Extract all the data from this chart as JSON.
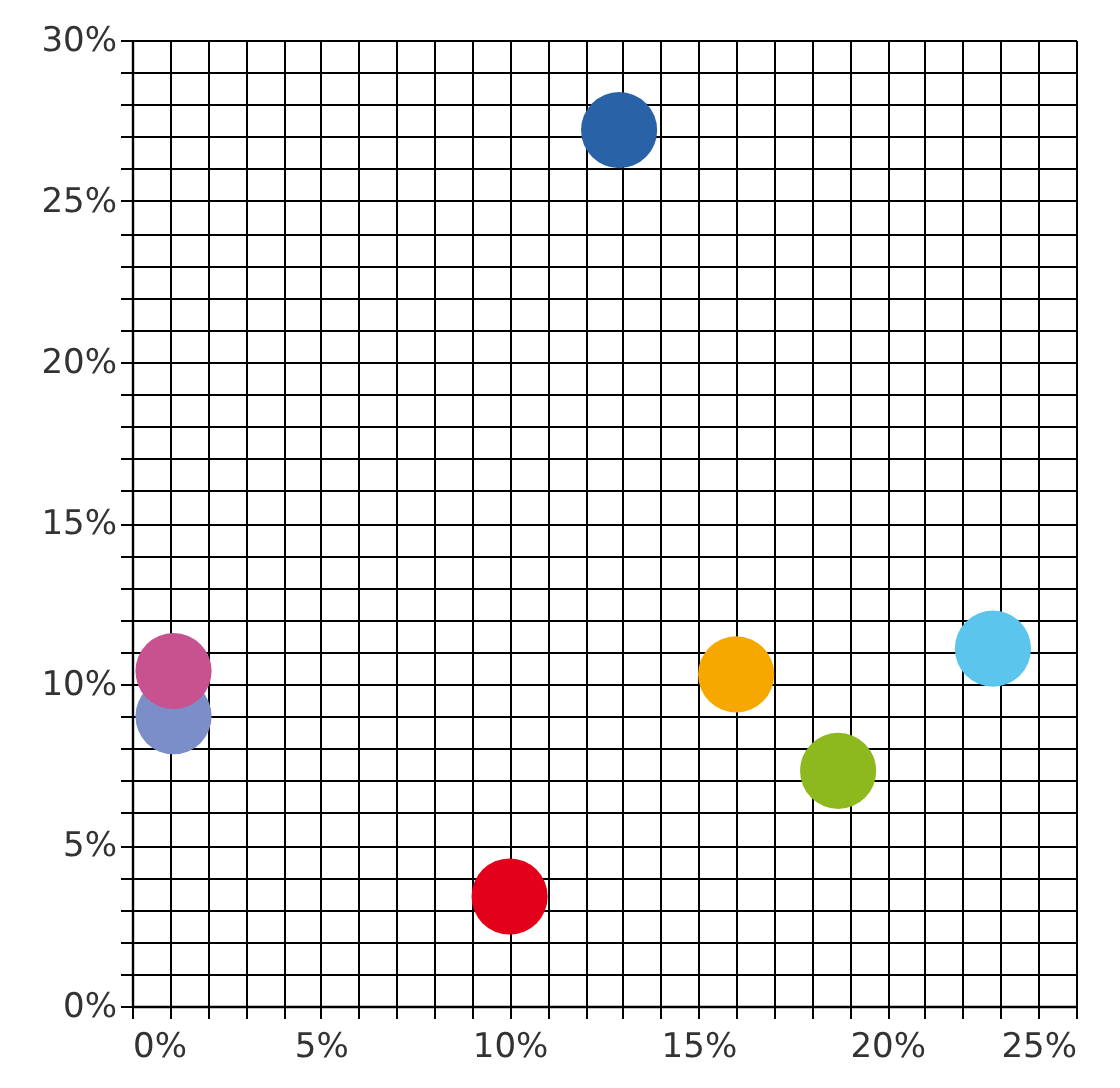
{
  "chart_data": {
    "type": "scatter",
    "marker": "circle",
    "legend": false,
    "grid": true,
    "xlim": [
      0,
      25
    ],
    "ylim": [
      0,
      30
    ],
    "xticks": [
      {
        "value": 0,
        "label": "0%"
      },
      {
        "value": 1,
        "label": null
      },
      {
        "value": 2,
        "label": null
      },
      {
        "value": 3,
        "label": null
      },
      {
        "value": 4,
        "label": null
      },
      {
        "value": 5,
        "label": "5%"
      },
      {
        "value": 6,
        "label": null
      },
      {
        "value": 7,
        "label": null
      },
      {
        "value": 8,
        "label": null
      },
      {
        "value": 9,
        "label": null
      },
      {
        "value": 10,
        "label": "10%"
      },
      {
        "value": 11,
        "label": null
      },
      {
        "value": 12,
        "label": null
      },
      {
        "value": 13,
        "label": null
      },
      {
        "value": 14,
        "label": null
      },
      {
        "value": 15,
        "label": "15%"
      },
      {
        "value": 16,
        "label": null
      },
      {
        "value": 17,
        "label": null
      },
      {
        "value": 18,
        "label": null
      },
      {
        "value": 19,
        "label": null
      },
      {
        "value": 20,
        "label": "20%"
      },
      {
        "value": 21,
        "label": null
      },
      {
        "value": 22,
        "label": null
      },
      {
        "value": 23,
        "label": null
      },
      {
        "value": 24,
        "label": null
      },
      {
        "value": 25,
        "label": "25%"
      }
    ],
    "yticks": [
      {
        "value": 0,
        "label": "0%"
      },
      {
        "value": 1,
        "label": null
      },
      {
        "value": 2,
        "label": null
      },
      {
        "value": 3,
        "label": null
      },
      {
        "value": 4,
        "label": null
      },
      {
        "value": 5,
        "label": "5%"
      },
      {
        "value": 6,
        "label": null
      },
      {
        "value": 7,
        "label": null
      },
      {
        "value": 8,
        "label": null
      },
      {
        "value": 9,
        "label": null
      },
      {
        "value": 10,
        "label": "10%"
      },
      {
        "value": 11,
        "label": null
      },
      {
        "value": 12,
        "label": null
      },
      {
        "value": 13,
        "label": null
      },
      {
        "value": 14,
        "label": null
      },
      {
        "value": 15,
        "label": "15%"
      },
      {
        "value": 16,
        "label": null
      },
      {
        "value": 17,
        "label": null
      },
      {
        "value": 18,
        "label": null
      },
      {
        "value": 19,
        "label": null
      },
      {
        "value": 20,
        "label": "20%"
      },
      {
        "value": 21,
        "label": null
      },
      {
        "value": 22,
        "label": null
      },
      {
        "value": 23,
        "label": null
      },
      {
        "value": 24,
        "label": null
      },
      {
        "value": 25,
        "label": "25%"
      },
      {
        "value": 26,
        "label": null
      },
      {
        "value": 27,
        "label": null
      },
      {
        "value": 28,
        "label": null
      },
      {
        "value": 29,
        "label": null
      },
      {
        "value": 30,
        "label": "30%"
      }
    ],
    "series": [
      {
        "color": "#2a62a8",
        "x": [
          12.9
        ],
        "values": [
          27.2
        ]
      },
      {
        "color": "#7b8ec8",
        "x": [
          1.1
        ],
        "values": [
          9.0
        ]
      },
      {
        "color": "#c8518f",
        "x": [
          1.1
        ],
        "values": [
          10.4
        ]
      },
      {
        "color": "#e3001b",
        "x": [
          10.0
        ],
        "values": [
          3.4
        ]
      },
      {
        "color": "#f6a800",
        "x": [
          16.0
        ],
        "values": [
          10.3
        ]
      },
      {
        "color": "#8db81e",
        "x": [
          18.7
        ],
        "values": [
          7.3
        ]
      },
      {
        "color": "#5bc5ee",
        "x": [
          22.8
        ],
        "values": [
          11.1
        ]
      }
    ]
  }
}
